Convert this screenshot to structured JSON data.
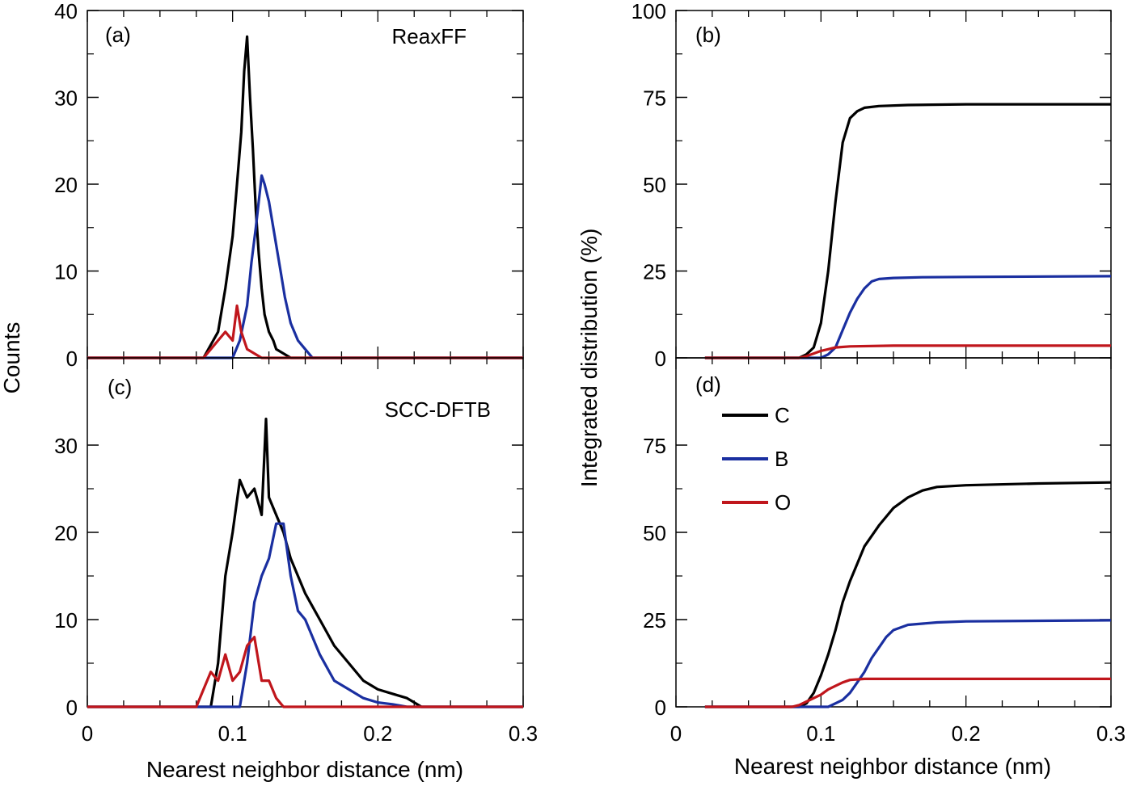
{
  "figure": {
    "left_ylabel": "Counts",
    "right_ylabel": "Integrated distribution (%)",
    "left_xlabel": "Nearest neighbor distance (nm)",
    "right_xlabel": "Nearest neighbor distance (nm)",
    "legend": [
      {
        "label": "C",
        "color": "#000000"
      },
      {
        "label": "B",
        "color": "#1a2fa0"
      },
      {
        "label": "O",
        "color": "#c0161c"
      }
    ]
  },
  "chart_data": [
    {
      "panel_label": "(a)",
      "method_label": "ReaxFF",
      "type": "line",
      "xlim": [
        0,
        0.3
      ],
      "ylim": [
        0,
        40
      ],
      "yticks": [
        "0",
        "10",
        "20",
        "30",
        "40"
      ],
      "xticks": [],
      "series": [
        {
          "name": "C",
          "color": "#000000",
          "x": [
            0.0,
            0.08,
            0.09,
            0.095,
            0.1,
            0.103,
            0.106,
            0.108,
            0.11,
            0.112,
            0.114,
            0.116,
            0.118,
            0.12,
            0.122,
            0.125,
            0.128,
            0.13,
            0.135,
            0.14,
            0.15,
            0.3
          ],
          "y": [
            0,
            0,
            3,
            8,
            14,
            20,
            26,
            33,
            37,
            30,
            24,
            17,
            12,
            8,
            5,
            3,
            2,
            1,
            0.5,
            0,
            0,
            0
          ]
        },
        {
          "name": "B",
          "color": "#1a2fa0",
          "x": [
            0.0,
            0.1,
            0.105,
            0.11,
            0.113,
            0.116,
            0.118,
            0.12,
            0.122,
            0.125,
            0.128,
            0.13,
            0.133,
            0.136,
            0.14,
            0.145,
            0.15,
            0.155,
            0.3
          ],
          "y": [
            0,
            0,
            2,
            6,
            11,
            15,
            18,
            21,
            20,
            18,
            15,
            13,
            10,
            7,
            4,
            2,
            1,
            0,
            0
          ]
        },
        {
          "name": "O",
          "color": "#c0161c",
          "x": [
            0.0,
            0.08,
            0.085,
            0.09,
            0.095,
            0.1,
            0.103,
            0.106,
            0.11,
            0.115,
            0.12,
            0.3
          ],
          "y": [
            0,
            0,
            1,
            2,
            3,
            2,
            6,
            3,
            1,
            0.5,
            0,
            0
          ]
        }
      ]
    },
    {
      "panel_label": "(c)",
      "method_label": "SCC-DFTB",
      "type": "line",
      "xlim": [
        0,
        0.3
      ],
      "ylim": [
        0,
        40
      ],
      "yticks": [
        "0",
        "10",
        "20",
        "30"
      ],
      "xticks": [
        "0",
        "0.1",
        "0.2",
        "0.3"
      ],
      "series": [
        {
          "name": "C",
          "color": "#000000",
          "x": [
            0.0,
            0.085,
            0.09,
            0.095,
            0.1,
            0.105,
            0.11,
            0.115,
            0.12,
            0.123,
            0.125,
            0.13,
            0.135,
            0.14,
            0.145,
            0.15,
            0.16,
            0.17,
            0.18,
            0.19,
            0.2,
            0.21,
            0.22,
            0.23,
            0.3
          ],
          "y": [
            0,
            0,
            5,
            15,
            20,
            26,
            24,
            25,
            22,
            33,
            24,
            22,
            20,
            17,
            15,
            13,
            10,
            7,
            5,
            3,
            2,
            1.5,
            1,
            0,
            0
          ]
        },
        {
          "name": "B",
          "color": "#1a2fa0",
          "x": [
            0.0,
            0.105,
            0.11,
            0.115,
            0.12,
            0.125,
            0.13,
            0.135,
            0.14,
            0.145,
            0.15,
            0.155,
            0.16,
            0.17,
            0.18,
            0.19,
            0.2,
            0.21,
            0.22,
            0.3
          ],
          "y": [
            0,
            0,
            5,
            12,
            15,
            17,
            21,
            21,
            15,
            11,
            10,
            8,
            6,
            3,
            2,
            1,
            0.5,
            0.3,
            0,
            0
          ]
        },
        {
          "name": "O",
          "color": "#c0161c",
          "x": [
            0.0,
            0.075,
            0.08,
            0.085,
            0.09,
            0.095,
            0.1,
            0.105,
            0.11,
            0.115,
            0.12,
            0.125,
            0.13,
            0.135,
            0.14,
            0.3
          ],
          "y": [
            0,
            0,
            2,
            4,
            3,
            6,
            3,
            4,
            7,
            8,
            3,
            3,
            1,
            0,
            0,
            0
          ]
        }
      ]
    },
    {
      "panel_label": "(b)",
      "type": "line",
      "xlim": [
        0,
        0.3
      ],
      "ylim": [
        0,
        100
      ],
      "yticks": [
        "0",
        "25",
        "50",
        "75",
        "100"
      ],
      "xticks": [],
      "series": [
        {
          "name": "C",
          "color": "#000000",
          "x": [
            0.02,
            0.085,
            0.09,
            0.095,
            0.1,
            0.105,
            0.11,
            0.115,
            0.12,
            0.125,
            0.13,
            0.14,
            0.16,
            0.2,
            0.3
          ],
          "y": [
            0,
            0,
            1,
            3,
            10,
            25,
            45,
            62,
            69,
            71,
            72,
            72.5,
            72.8,
            73,
            73
          ]
        },
        {
          "name": "B",
          "color": "#1a2fa0",
          "x": [
            0.02,
            0.1,
            0.105,
            0.11,
            0.115,
            0.12,
            0.125,
            0.13,
            0.135,
            0.14,
            0.15,
            0.17,
            0.2,
            0.3
          ],
          "y": [
            0,
            0,
            1,
            3,
            8,
            13,
            17,
            20,
            22,
            22.7,
            23,
            23.2,
            23.3,
            23.5
          ]
        },
        {
          "name": "O",
          "color": "#c0161c",
          "x": [
            0.02,
            0.085,
            0.09,
            0.1,
            0.105,
            0.11,
            0.12,
            0.15,
            0.3
          ],
          "y": [
            0,
            0,
            0.5,
            2,
            2.5,
            3,
            3.3,
            3.5,
            3.5
          ]
        }
      ]
    },
    {
      "panel_label": "(d)",
      "type": "line",
      "xlim": [
        0,
        0.3
      ],
      "ylim": [
        0,
        100
      ],
      "yticks": [
        "0",
        "25",
        "50",
        "75"
      ],
      "xticks": [
        "0",
        "0.1",
        "0.2",
        "0.3"
      ],
      "series": [
        {
          "name": "C",
          "color": "#000000",
          "x": [
            0.02,
            0.085,
            0.09,
            0.095,
            0.1,
            0.105,
            0.11,
            0.115,
            0.12,
            0.125,
            0.13,
            0.14,
            0.15,
            0.16,
            0.17,
            0.18,
            0.2,
            0.25,
            0.3
          ],
          "y": [
            0,
            0,
            1,
            4,
            9,
            15,
            22,
            30,
            36,
            41,
            46,
            52,
            57,
            60,
            62,
            63,
            63.5,
            64,
            64.3
          ]
        },
        {
          "name": "B",
          "color": "#1a2fa0",
          "x": [
            0.02,
            0.105,
            0.11,
            0.115,
            0.12,
            0.125,
            0.13,
            0.135,
            0.14,
            0.145,
            0.15,
            0.16,
            0.18,
            0.2,
            0.3
          ],
          "y": [
            0,
            0,
            1,
            2,
            4,
            7,
            10,
            14,
            17,
            20,
            22,
            23.5,
            24.2,
            24.5,
            24.8
          ]
        },
        {
          "name": "O",
          "color": "#c0161c",
          "x": [
            0.02,
            0.08,
            0.085,
            0.09,
            0.095,
            0.1,
            0.105,
            0.11,
            0.115,
            0.12,
            0.13,
            0.14,
            0.3
          ],
          "y": [
            0,
            0,
            0.5,
            1.5,
            2.5,
            3.5,
            5,
            6,
            7,
            7.7,
            8,
            8,
            8
          ]
        }
      ]
    }
  ]
}
